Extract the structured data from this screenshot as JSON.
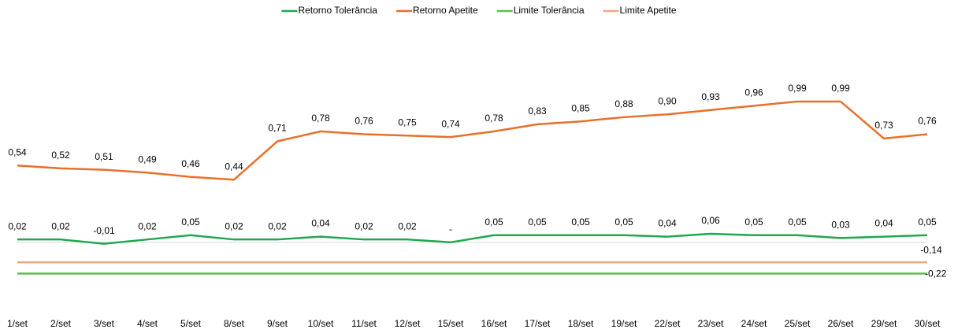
{
  "chart_data": {
    "type": "line",
    "categories": [
      "1/set",
      "2/set",
      "3/set",
      "4/set",
      "5/set",
      "8/set",
      "9/set",
      "10/set",
      "11/set",
      "12/set",
      "15/set",
      "16/set",
      "17/set",
      "18/set",
      "19/set",
      "22/set",
      "23/set",
      "24/set",
      "25/set",
      "26/set",
      "29/set",
      "30/set"
    ],
    "series": [
      {
        "name": "Retorno Tolerância",
        "color": "#1fa84f",
        "values": [
          0.02,
          0.02,
          -0.01,
          0.02,
          0.05,
          0.02,
          0.02,
          0.04,
          0.02,
          0.02,
          0,
          0.05,
          0.05,
          0.05,
          0.05,
          0.04,
          0.06,
          0.05,
          0.05,
          0.03,
          0.04,
          0.05
        ],
        "value_labels": [
          "0,02",
          "0,02",
          "-0,01",
          "0,02",
          "0,05",
          "0,02",
          "0,02",
          "0,04",
          "0,02",
          "0,02",
          "-",
          "0,05",
          "0,05",
          "0,05",
          "0,05",
          "0,04",
          "0,06",
          "0,05",
          "0,05",
          "0,03",
          "0,04",
          "0,05"
        ]
      },
      {
        "name": "Retorno Apetite",
        "color": "#e8702a",
        "values": [
          0.54,
          0.52,
          0.51,
          0.49,
          0.46,
          0.44,
          0.71,
          0.78,
          0.76,
          0.75,
          0.74,
          0.78,
          0.83,
          0.85,
          0.88,
          0.9,
          0.93,
          0.96,
          0.99,
          0.99,
          0.73,
          0.76
        ],
        "value_labels": [
          "0,54",
          "0,52",
          "0,51",
          "0,49",
          "0,46",
          "0,44",
          "0,71",
          "0,78",
          "0,76",
          "0,75",
          "0,74",
          "0,78",
          "0,83",
          "0,85",
          "0,88",
          "0,90",
          "0,93",
          "0,96",
          "0,99",
          "0,99",
          "0,73",
          "0,76"
        ]
      },
      {
        "name": "Limite Tolerância",
        "color": "#5cbf4a",
        "values": [
          -0.22,
          -0.22,
          -0.22,
          -0.22,
          -0.22,
          -0.22,
          -0.22,
          -0.22,
          -0.22,
          -0.22,
          -0.22,
          -0.22,
          -0.22,
          -0.22,
          -0.22,
          -0.22,
          -0.22,
          -0.22,
          -0.22,
          -0.22,
          -0.22,
          -0.22
        ],
        "value_labels": [
          null,
          null,
          null,
          null,
          null,
          null,
          null,
          null,
          null,
          null,
          null,
          null,
          null,
          null,
          null,
          null,
          null,
          null,
          null,
          null,
          null,
          "-0,22"
        ]
      },
      {
        "name": "Limite Apetite",
        "color": "#f4a582",
        "values": [
          -0.14,
          -0.14,
          -0.14,
          -0.14,
          -0.14,
          -0.14,
          -0.14,
          -0.14,
          -0.14,
          -0.14,
          -0.14,
          -0.14,
          -0.14,
          -0.14,
          -0.14,
          -0.14,
          -0.14,
          -0.14,
          -0.14,
          -0.14,
          -0.14,
          -0.14
        ],
        "value_labels": [
          null,
          null,
          null,
          null,
          null,
          null,
          null,
          null,
          null,
          null,
          null,
          null,
          null,
          null,
          null,
          null,
          null,
          null,
          null,
          null,
          null,
          "-0,14"
        ]
      }
    ],
    "ylim": [
      -0.3,
      1.2
    ],
    "legend": "top"
  }
}
